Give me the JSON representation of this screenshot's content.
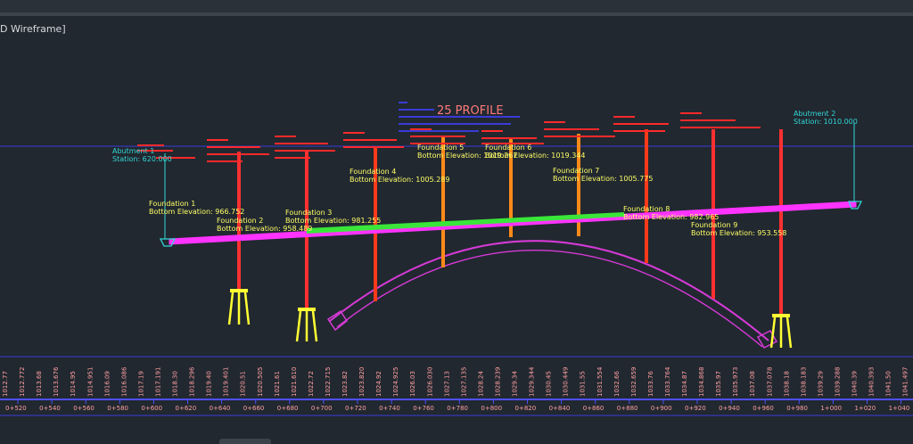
{
  "viewport": {
    "label": "D Wireframe]"
  },
  "profile": {
    "title": "25 PROFILE",
    "abutments": [
      {
        "name": "Abutment 1",
        "station": "Station: 620.000"
      },
      {
        "name": "Abutment 2",
        "station": "Station: 1010.000"
      }
    ],
    "foundations": [
      {
        "name": "Foundation 1",
        "elevation": "Bottom Elevation: 966.752"
      },
      {
        "name": "Foundation 2",
        "elevation": "Bottom Elevation: 958.489"
      },
      {
        "name": "Foundation 3",
        "elevation": "Bottom Elevation: 981.255"
      },
      {
        "name": "Foundation 4",
        "elevation": "Bottom Elevation: 1005.289"
      },
      {
        "name": "Foundation 5",
        "elevation": "Bottom Elevation: 1019.267"
      },
      {
        "name": "Foundation 6",
        "elevation": "Bottom Elevation: 1019.344"
      },
      {
        "name": "Foundation 7",
        "elevation": "Bottom Elevation: 1005.775"
      },
      {
        "name": "Foundation 8",
        "elevation": "Bottom Elevation: 982.965"
      },
      {
        "name": "Foundation 9",
        "elevation": "Bottom Elevation: 953.558"
      }
    ],
    "stations": [
      "0+520",
      "0+540",
      "0+560",
      "0+580",
      "0+600",
      "0+620",
      "0+640",
      "0+660",
      "0+680",
      "0+700",
      "0+720",
      "0+740",
      "0+760",
      "0+780",
      "0+800",
      "0+820",
      "0+840",
      "0+860",
      "0+880",
      "0+900",
      "0+920",
      "0+940",
      "0+960",
      "0+980",
      "1+000",
      "1+020",
      "1+040"
    ],
    "elevations": [
      "1012.77",
      "1012.772",
      "1013.68",
      "1013.676",
      "1014.95",
      "1014.951",
      "1016.09",
      "1016.086",
      "1017.19",
      "1017.191",
      "1018.30",
      "1018.296",
      "1019.40",
      "1019.401",
      "1020.51",
      "1020.505",
      "1021.61",
      "1021.610",
      "1022.72",
      "1022.715",
      "1023.82",
      "1023.820",
      "1024.92",
      "1024.925",
      "1026.03",
      "1026.030",
      "1027.13",
      "1027.135",
      "1028.24",
      "1028.239",
      "1029.34",
      "1029.344",
      "1030.45",
      "1030.449",
      "1031.55",
      "1031.554",
      "1032.66",
      "1032.659",
      "1033.76",
      "1033.764",
      "1034.87",
      "1034.868",
      "1035.97",
      "1035.973",
      "1037.08",
      "1037.078",
      "1038.18",
      "1038.183",
      "1039.29",
      "1039.288",
      "1040.39",
      "1040.393",
      "1041.50",
      "1041.497"
    ]
  },
  "colors": {
    "background": "#212830",
    "deck": "#ff33ff",
    "deck_green": "#39e639",
    "arch": "#d63ad6",
    "pier_red": "#ff3030",
    "pier_orange": "#ff8a1a",
    "foundation_text": "#ffff66",
    "abutment": "#33d6d6",
    "pier_text": "#ff2a2a",
    "grid_blue": "#3b3bd8",
    "station_text": "#ffa0a0"
  }
}
